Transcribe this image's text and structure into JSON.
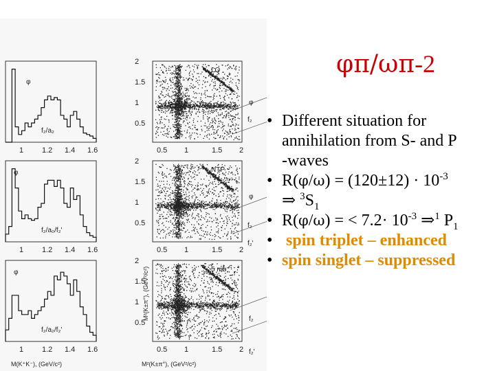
{
  "title": {
    "phi": "φ",
    "pi1": "π",
    "slash": "/",
    "omega": "ω",
    "pi2": "π",
    "suffix": "-2"
  },
  "bullets": {
    "b1_line1": "Different situation for",
    "b1_line2": "annihilation from S- and P",
    "b1_line3": "-waves",
    "b2": {
      "pre": "R(",
      "phi": "φ",
      "slash": "/",
      "omega": "ω",
      "mid": ") = (120",
      "pm": "±",
      "post": "12) · 10",
      "exp": "-3"
    },
    "b2_cont": {
      "arrow": "⇒",
      "sup": "3",
      "state": "S",
      "sub": "1"
    },
    "b3": {
      "pre": "R(",
      "phi": "φ",
      "slash": "/",
      "omega": "ω",
      "mid": ") = < 7.2· 10",
      "exp": "-3",
      "arrow": "⇒",
      "sup": "1",
      "state": " P",
      "sub": "1"
    },
    "b4": "spin triplet – enhanced",
    "b5": "spin singlet – suppressed",
    "bullet_char": "•"
  },
  "figure": {
    "left_ticks_x": [
      "1",
      "1.2",
      "1.4",
      "1.6"
    ],
    "right_ticks_x": [
      "0.5",
      "1",
      "1.5",
      "2"
    ],
    "right_ticks_y": [
      "2",
      "1.5",
      "1",
      "0.5"
    ],
    "panels": [
      {
        "label": "LQ",
        "phi": "φ",
        "peak_label": "f₂/a₂"
      },
      {
        "label": "NTP",
        "phi": "φ",
        "peak_label": "f₂/a₀/f₂'"
      },
      {
        "label": "5 mb",
        "phi": "φ",
        "peak_label": "f₂/a₂/f₂'"
      }
    ],
    "side_labels": [
      "φ",
      "f₂",
      "φ",
      "f₂",
      "f₂'",
      "f₂",
      "f₂'"
    ],
    "y_axis_label": "M²(K±π°), (GeV²/c²)",
    "x_axis_left": "M(K⁺K⁻), (GeV/c²)",
    "x_axis_right": "M²(K±π°), (GeV²/c²)",
    "colors": {
      "title": "#cc0000",
      "highlight": "#e08a00"
    }
  }
}
